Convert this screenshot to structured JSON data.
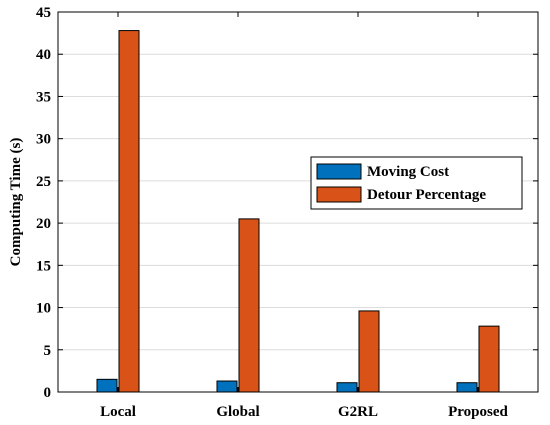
{
  "chart_data": {
    "type": "bar",
    "title": "",
    "xlabel": "",
    "ylabel": "Computing Time (s)",
    "categories": [
      "Local",
      "Global",
      "G2RL",
      "Proposed"
    ],
    "series": [
      {
        "name": "Moving Cost",
        "color": "#0072BD",
        "values": [
          1.5,
          1.3,
          1.1,
          1.1
        ]
      },
      {
        "name": "Detour Percentage",
        "color": "#D95319",
        "values": [
          42.8,
          20.5,
          9.6,
          7.8
        ]
      }
    ],
    "ylim": [
      0,
      45
    ],
    "yticks": [
      0,
      5,
      10,
      15,
      20,
      25,
      30,
      35,
      40,
      45
    ],
    "grid": true,
    "legend_position": "center-right"
  }
}
